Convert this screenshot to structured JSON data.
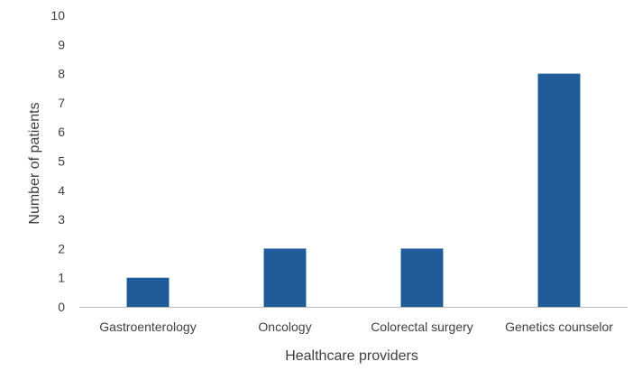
{
  "chart_data": {
    "type": "bar",
    "categories": [
      "Gastroenterology",
      "Oncology",
      "Colorectal surgery",
      "Genetics counselor"
    ],
    "values": [
      1,
      2,
      2,
      8
    ],
    "xlabel": "Healthcare providers",
    "ylabel": "Number of patients",
    "ylim": [
      0,
      10
    ],
    "yticks": [
      "0",
      "1",
      "2",
      "3",
      "4",
      "5",
      "6",
      "7",
      "8",
      "9",
      "10"
    ],
    "grid": false,
    "legend": "none",
    "bar_color": "#1F5C99",
    "axis_color": "#BFBFBF"
  }
}
